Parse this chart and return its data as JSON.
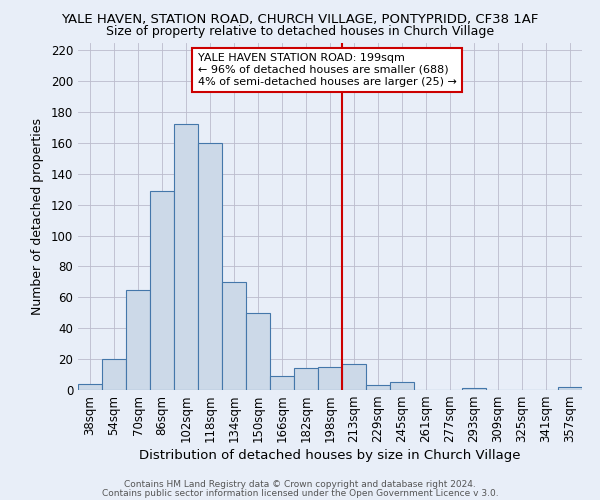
{
  "title1": "YALE HAVEN, STATION ROAD, CHURCH VILLAGE, PONTYPRIDD, CF38 1AF",
  "title2": "Size of property relative to detached houses in Church Village",
  "xlabel": "Distribution of detached houses by size in Church Village",
  "ylabel": "Number of detached properties",
  "footer1": "Contains HM Land Registry data © Crown copyright and database right 2024.",
  "footer2": "Contains public sector information licensed under the Open Government Licence v 3.0.",
  "annotation_title": "YALE HAVEN STATION ROAD: 199sqm",
  "annotation_line1": "← 96% of detached houses are smaller (688)",
  "annotation_line2": "4% of semi-detached houses are larger (25) →",
  "bar_data": [
    {
      "label": "38sqm",
      "value": 4
    },
    {
      "label": "54sqm",
      "value": 20
    },
    {
      "label": "70sqm",
      "value": 65
    },
    {
      "label": "86sqm",
      "value": 129
    },
    {
      "label": "102sqm",
      "value": 172
    },
    {
      "label": "118sqm",
      "value": 160
    },
    {
      "label": "134sqm",
      "value": 70
    },
    {
      "label": "150sqm",
      "value": 50
    },
    {
      "label": "166sqm",
      "value": 9
    },
    {
      "label": "182sqm",
      "value": 14
    },
    {
      "label": "198sqm",
      "value": 15
    },
    {
      "label": "213sqm",
      "value": 17
    },
    {
      "label": "229sqm",
      "value": 3
    },
    {
      "label": "245sqm",
      "value": 5
    },
    {
      "label": "261sqm",
      "value": 0
    },
    {
      "label": "277sqm",
      "value": 0
    },
    {
      "label": "293sqm",
      "value": 1
    },
    {
      "label": "309sqm",
      "value": 0
    },
    {
      "label": "325sqm",
      "value": 0
    },
    {
      "label": "341sqm",
      "value": 0
    },
    {
      "label": "357sqm",
      "value": 2
    }
  ],
  "bar_color": "#ccd9e8",
  "bar_edge_color": "#4477aa",
  "marker_bar_index": 10,
  "marker_line_color": "#cc0000",
  "annotation_box_edge_color": "#cc0000",
  "annotation_box_face_color": "#ffffff",
  "ylim": [
    0,
    225
  ],
  "yticks": [
    0,
    20,
    40,
    60,
    80,
    100,
    120,
    140,
    160,
    180,
    200,
    220
  ],
  "grid_color": "#bbbbcc",
  "bg_color": "#e8eef8",
  "plot_bg_color": "#e8eef8",
  "title1_fontsize": 9.5,
  "title2_fontsize": 9.0,
  "xlabel_fontsize": 9.5,
  "ylabel_fontsize": 9.0,
  "tick_fontsize": 8.5,
  "annotation_fontsize": 8.0,
  "footer_fontsize": 6.5
}
